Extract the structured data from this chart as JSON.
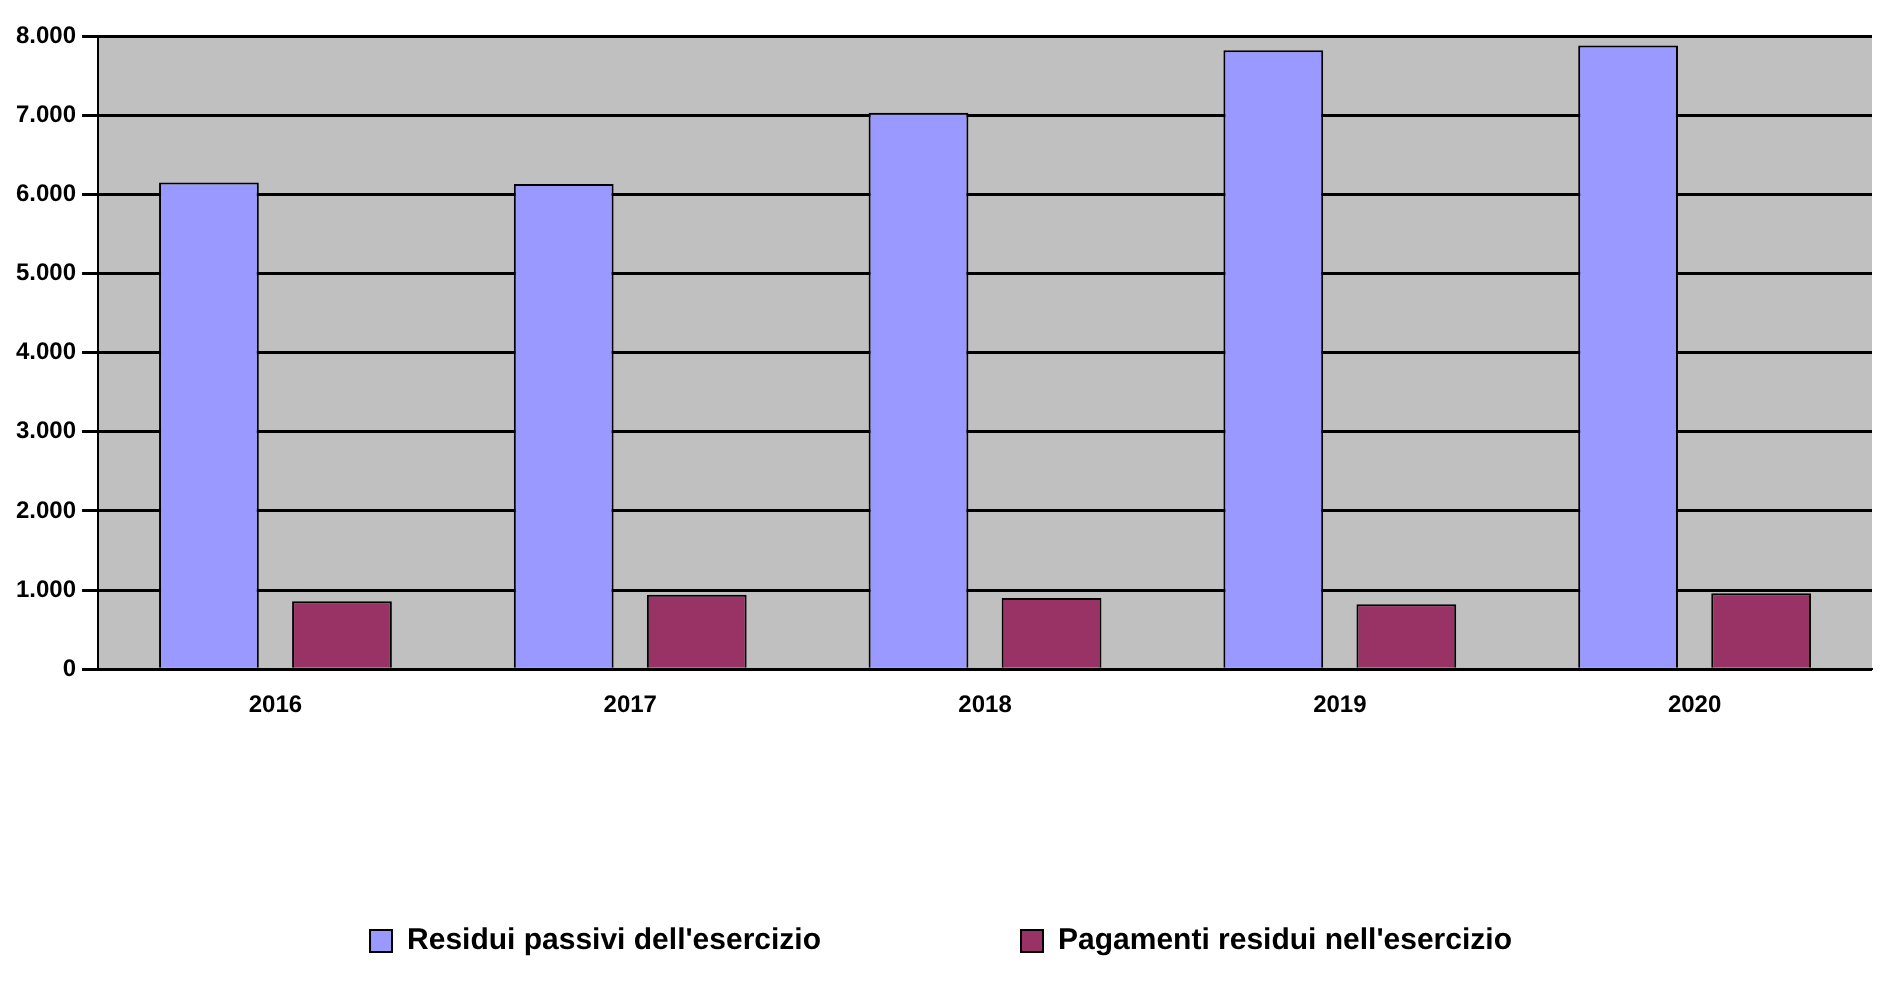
{
  "chart_data": {
    "type": "bar",
    "categories": [
      "2016",
      "2017",
      "2018",
      "2019",
      "2020"
    ],
    "series": [
      {
        "name": "Residui passivi dell'esercizio",
        "color": "#9999ff",
        "values": [
          6150,
          6130,
          7030,
          7820,
          7880
        ]
      },
      {
        "name": "Pagamenti residui nell'esercizio",
        "color": "#993366",
        "values": [
          860,
          940,
          900,
          820,
          960
        ]
      }
    ],
    "ylim": [
      0,
      8000
    ],
    "yticks": [
      {
        "value": 0,
        "label": "0"
      },
      {
        "value": 1000,
        "label": "1.000"
      },
      {
        "value": 2000,
        "label": "2.000"
      },
      {
        "value": 3000,
        "label": "3.000"
      },
      {
        "value": 4000,
        "label": "4.000"
      },
      {
        "value": 5000,
        "label": "5.000"
      },
      {
        "value": 6000,
        "label": "6.000"
      },
      {
        "value": 7000,
        "label": "7.000"
      },
      {
        "value": 8000,
        "label": "8.000"
      }
    ],
    "grid": "y",
    "legend": "bottom"
  }
}
